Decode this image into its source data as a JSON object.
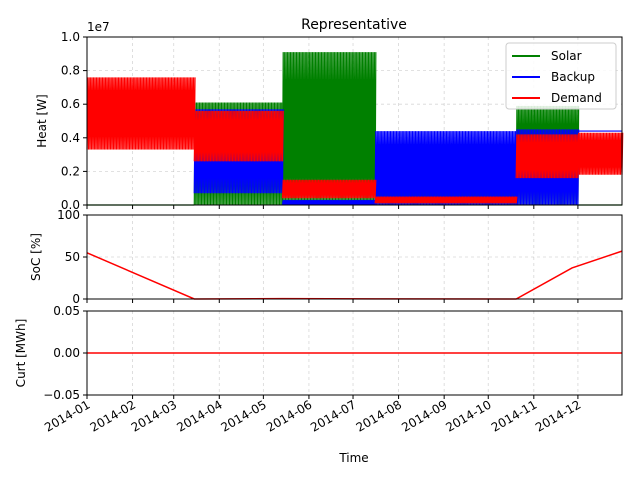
{
  "chart_data": [
    {
      "type": "line",
      "title": "Representative",
      "ylabel": "Heat [W]",
      "y_offset_text": "1e7",
      "ylim": [
        0,
        1.0
      ],
      "yticks": [
        "0.0",
        "0.2",
        "0.4",
        "0.6",
        "0.8",
        "1.0"
      ],
      "grid": true,
      "legend_placement": "top-right",
      "series": [
        {
          "name": "Solar",
          "color": "#008000",
          "segments": [
            {
              "start": "2014-01-01",
              "end": "2014-03-15",
              "min": 0.0,
              "max": 0.0
            },
            {
              "start": "2014-03-15",
              "end": "2014-05-14",
              "min": 0.0,
              "max": 0.61
            },
            {
              "start": "2014-05-14",
              "end": "2014-07-16",
              "min": 0.0,
              "max": 0.91
            },
            {
              "start": "2014-07-16",
              "end": "2014-10-20",
              "min": 0.0,
              "max": 0.14
            },
            {
              "start": "2014-10-20",
              "end": "2014-12-01",
              "min": 0.0,
              "max": 0.59
            },
            {
              "start": "2014-12-01",
              "end": "2014-12-31",
              "min": 0.0,
              "max": 0.0
            }
          ]
        },
        {
          "name": "Backup",
          "color": "#0000ff",
          "segments": [
            {
              "start": "2014-01-01",
              "end": "2014-03-15",
              "min": 0.44,
              "max": 0.44
            },
            {
              "start": "2014-03-15",
              "end": "2014-05-14",
              "min": 0.07,
              "max": 0.57
            },
            {
              "start": "2014-05-14",
              "end": "2014-07-16",
              "min": 0.0,
              "max": 0.03
            },
            {
              "start": "2014-07-16",
              "end": "2014-10-20",
              "min": 0.0,
              "max": 0.44
            },
            {
              "start": "2014-10-20",
              "end": "2014-12-01",
              "min": 0.0,
              "max": 0.45
            },
            {
              "start": "2014-12-01",
              "end": "2014-12-31",
              "min": 0.44,
              "max": 0.44
            }
          ]
        },
        {
          "name": "Demand",
          "color": "#ff0000",
          "segments": [
            {
              "start": "2014-01-01",
              "end": "2014-03-15",
              "min": 0.33,
              "max": 0.76
            },
            {
              "start": "2014-03-15",
              "end": "2014-05-14",
              "min": 0.26,
              "max": 0.56
            },
            {
              "start": "2014-05-14",
              "end": "2014-07-16",
              "min": 0.04,
              "max": 0.15
            },
            {
              "start": "2014-07-16",
              "end": "2014-10-20",
              "min": 0.01,
              "max": 0.05
            },
            {
              "start": "2014-10-20",
              "end": "2014-12-01",
              "min": 0.16,
              "max": 0.42
            },
            {
              "start": "2014-12-01",
              "end": "2014-12-31",
              "min": 0.18,
              "max": 0.43
            }
          ]
        }
      ]
    },
    {
      "type": "line",
      "ylabel": "SoC [%]",
      "ylim": [
        0,
        100
      ],
      "yticks": [
        "0",
        "50",
        "100"
      ],
      "grid": true,
      "series": [
        {
          "color": "#ff0000",
          "x": [
            "2014-01-01",
            "2014-03-15",
            "2014-05-14",
            "2014-07-16",
            "2014-10-20",
            "2014-11-27",
            "2014-12-31"
          ],
          "y": [
            55,
            0,
            0.5,
            0.2,
            0,
            37,
            57
          ]
        }
      ]
    },
    {
      "type": "line",
      "ylabel": "Curt [MWh]",
      "ylim": [
        -0.05,
        0.05
      ],
      "yticks": [
        "−0.05",
        "0.00",
        "0.05"
      ],
      "grid": true,
      "xlabel": "Time",
      "x_ticks": [
        "2014-01",
        "2014-02",
        "2014-03",
        "2014-04",
        "2014-05",
        "2014-06",
        "2014-07",
        "2014-08",
        "2014-09",
        "2014-10",
        "2014-11",
        "2014-12"
      ],
      "series": [
        {
          "color": "#ff0000",
          "x": [
            "2014-01-01",
            "2014-12-31"
          ],
          "y": [
            0.0,
            0.0
          ]
        }
      ]
    }
  ]
}
